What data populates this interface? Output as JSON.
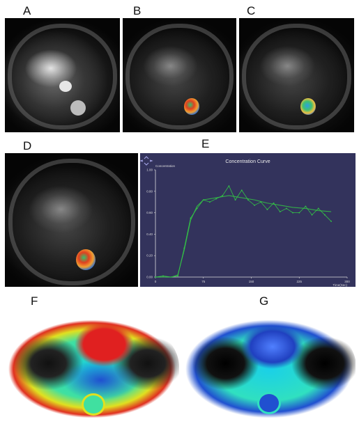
{
  "labels": {
    "a": "A",
    "b": "B",
    "c": "C",
    "d": "D",
    "e": "E",
    "f": "F",
    "g": "G"
  },
  "chart_data": {
    "type": "line",
    "title": "Concentration Curve",
    "ylabel": "Concentration",
    "xlabel": "Time(Sec)",
    "xlim": [
      0,
      300
    ],
    "ylim": [
      0,
      1.0
    ],
    "x_ticks": [
      "0",
      "75",
      "150",
      "225",
      "300"
    ],
    "y_ticks": [
      "0.00",
      "0.20",
      "0.40",
      "0.60",
      "0.80",
      "1.00"
    ],
    "series": [
      {
        "values_x": [
          0,
          12,
          25,
          35,
          45,
          55,
          65,
          75,
          85,
          95,
          105,
          115,
          125,
          135,
          145,
          155,
          165,
          175,
          185,
          195,
          205,
          215,
          225,
          235,
          245,
          255,
          265,
          275
        ],
        "values_y": [
          0.0,
          0.01,
          0.0,
          0.01,
          0.27,
          0.55,
          0.64,
          0.72,
          0.7,
          0.73,
          0.76,
          0.85,
          0.72,
          0.81,
          0.72,
          0.67,
          0.7,
          0.63,
          0.69,
          0.61,
          0.64,
          0.6,
          0.6,
          0.66,
          0.58,
          0.64,
          0.58,
          0.52
        ]
      },
      {
        "values_x": [
          0,
          25,
          35,
          45,
          55,
          65,
          75,
          95,
          115,
          135,
          155,
          175,
          195,
          215,
          235,
          255,
          275
        ],
        "values_y": [
          0.0,
          0.0,
          0.02,
          0.25,
          0.53,
          0.66,
          0.72,
          0.74,
          0.76,
          0.74,
          0.72,
          0.69,
          0.67,
          0.65,
          0.64,
          0.62,
          0.61
        ]
      }
    ],
    "colors": {
      "raw": "#33cc44",
      "fit": "#33cc44",
      "axis": "#dddddd",
      "background": "#33335c"
    }
  },
  "colors": {
    "roi": "#e04020"
  }
}
